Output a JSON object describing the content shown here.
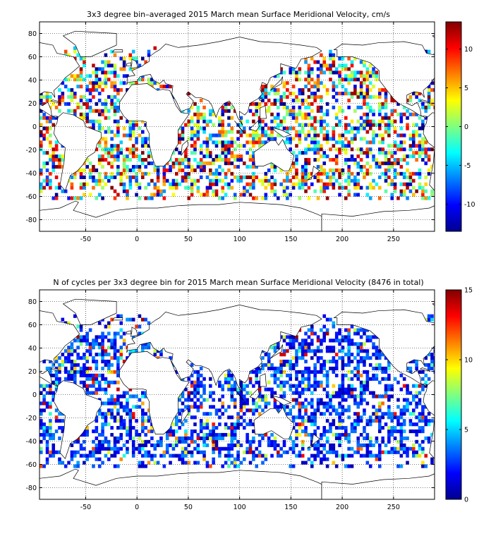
{
  "chart_data": [
    {
      "type": "heatmap",
      "title": "3x3 degree bin–averaged 2015 March mean Surface Meridional Velocity, cm/s",
      "xlabel": "",
      "ylabel": "",
      "xlim": [
        -95,
        290
      ],
      "ylim": [
        -90,
        90
      ],
      "x_ticks": [
        "-50",
        "0",
        "50",
        "100",
        "150",
        "200",
        "250"
      ],
      "x_tick_values": [
        -50,
        0,
        50,
        100,
        150,
        200,
        250
      ],
      "y_ticks": [
        "80",
        "60",
        "40",
        "20",
        "0",
        "-20",
        "-40",
        "-60",
        "-80"
      ],
      "y_tick_values": [
        80,
        60,
        40,
        20,
        0,
        -20,
        -40,
        -60,
        -80
      ],
      "bin_size_deg": 3,
      "grid": true,
      "colorbar": {
        "position": "right",
        "range": [
          -13.5,
          13.5
        ],
        "ticks": [
          "10",
          "5",
          "0",
          "-5",
          "-10"
        ],
        "tick_values": [
          10,
          5,
          0,
          -5,
          -10
        ],
        "colormap": "jet"
      }
    },
    {
      "type": "heatmap",
      "title": "N of cycles per 3x3 degree bin for 2015 March mean Surface Meridional Velocity (8476 in total)",
      "xlabel": "",
      "ylabel": "",
      "xlim": [
        -95,
        290
      ],
      "ylim": [
        -90,
        90
      ],
      "x_ticks": [
        "-50",
        "0",
        "50",
        "100",
        "150",
        "200",
        "250"
      ],
      "x_tick_values": [
        -50,
        0,
        50,
        100,
        150,
        200,
        250
      ],
      "y_ticks": [
        "80",
        "60",
        "40",
        "20",
        "0",
        "-20",
        "-40",
        "-60",
        "-80"
      ],
      "y_tick_values": [
        80,
        60,
        40,
        20,
        0,
        -20,
        -40,
        -60,
        -80
      ],
      "bin_size_deg": 3,
      "total_cycles": 8476,
      "grid": true,
      "colorbar": {
        "position": "right",
        "range": [
          0,
          15
        ],
        "ticks": [
          "15",
          "10",
          "5",
          "0"
        ],
        "tick_values": [
          15,
          10,
          5,
          0
        ],
        "colormap": "jet"
      }
    }
  ]
}
